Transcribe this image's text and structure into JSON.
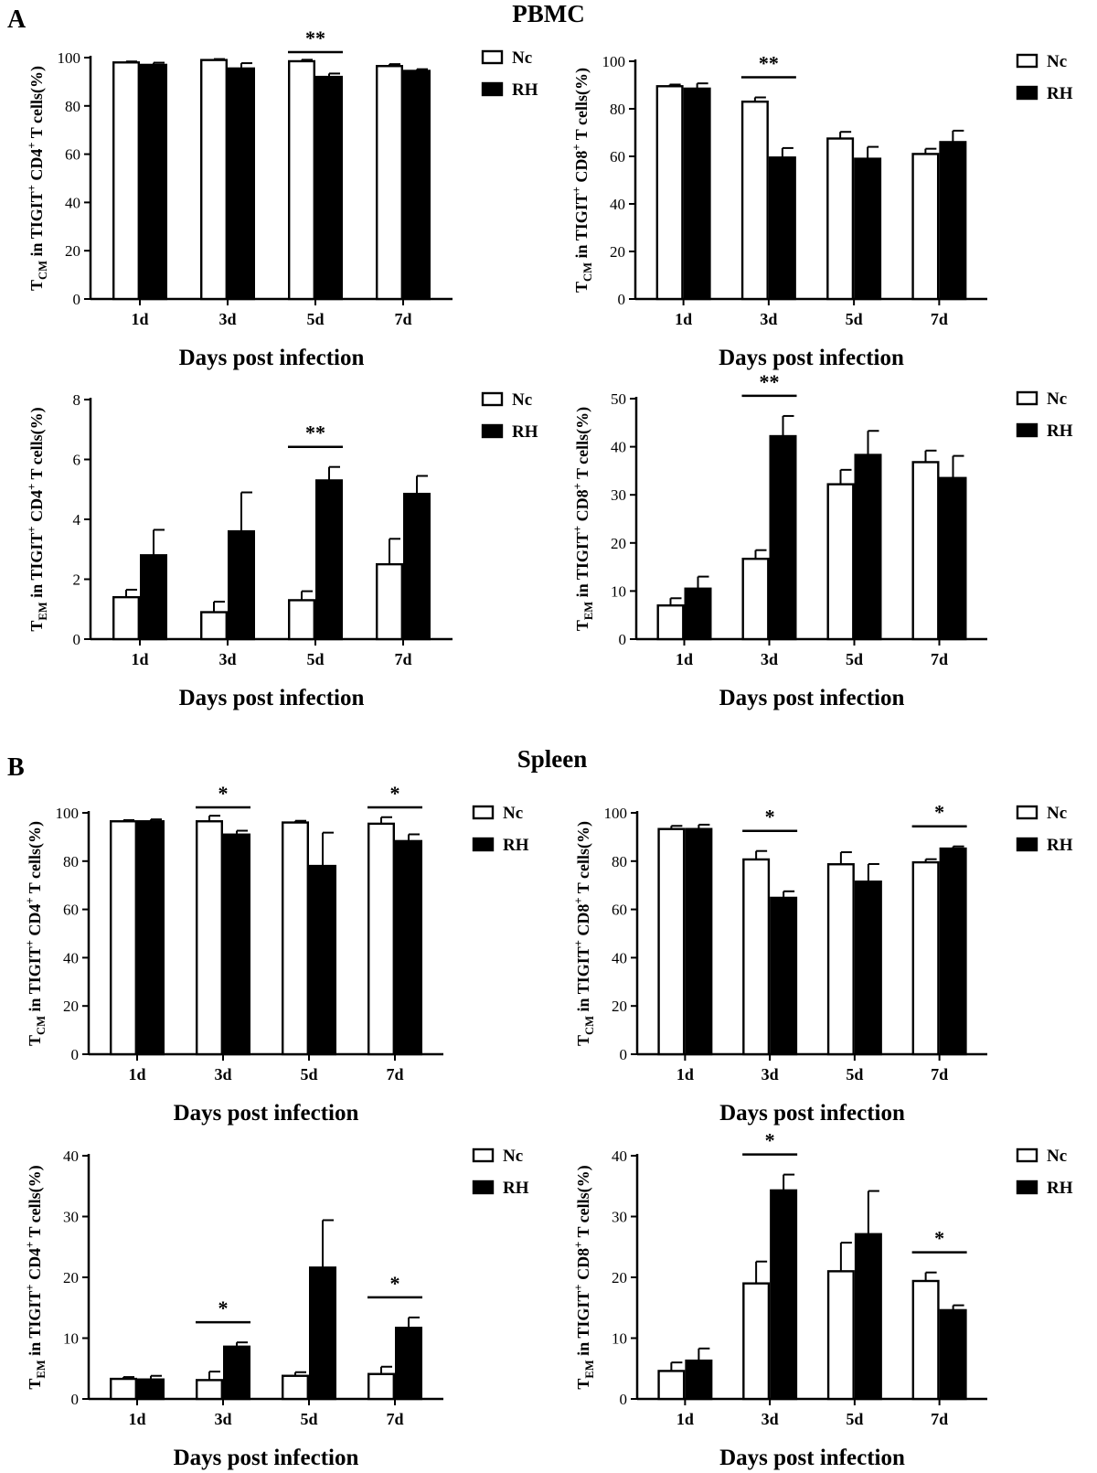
{
  "figure": {
    "panel_a_letter": "A",
    "panel_b_letter": "B",
    "panel_a_title": "PBMC",
    "panel_b_title": "Spleen"
  },
  "legend": {
    "nc_label": "Nc",
    "rh_label": "RH",
    "nc_fill": "#ffffff",
    "rh_fill": "#000000"
  },
  "chart_data": [
    {
      "type": "bar",
      "panel": "A",
      "title": "",
      "categories": [
        "1d",
        "3d",
        "5d",
        "7d"
      ],
      "xlabel": "Days post infection",
      "ylabel": {
        "main": "T",
        "sub": "CM",
        "mid": " in TIGIT",
        "sup": "+",
        "cell": " CD4",
        "sup2": "+",
        "tail": " T cells(%)"
      },
      "ylim": [
        0,
        100
      ],
      "yticks": [
        0,
        20,
        40,
        60,
        80,
        100
      ],
      "series": [
        {
          "name": "Nc",
          "values": [
            98,
            99,
            98.5,
            96.5
          ],
          "errors": [
            0.4,
            0.4,
            0.6,
            0.8
          ]
        },
        {
          "name": "RH",
          "values": [
            97,
            95.5,
            92,
            94.5
          ],
          "errors": [
            0.9,
            2.2,
            1.4,
            0.7
          ]
        }
      ],
      "significance": [
        {
          "category": "5d",
          "label": "**"
        }
      ]
    },
    {
      "type": "bar",
      "panel": "A",
      "title": "",
      "categories": [
        "1d",
        "3d",
        "5d",
        "7d"
      ],
      "xlabel": "Days post infection",
      "ylabel": {
        "main": "T",
        "sub": "CM",
        "mid": " in TIGIT",
        "sup": "+",
        "cell": " CD8",
        "sup2": "+",
        "tail": " T cells(%)"
      },
      "ylim": [
        0,
        100
      ],
      "yticks": [
        0,
        20,
        40,
        60,
        80,
        100
      ],
      "series": [
        {
          "name": "Nc",
          "values": [
            89.5,
            83,
            67.5,
            61
          ],
          "errors": [
            0.7,
            1.8,
            2.8,
            2.2
          ]
        },
        {
          "name": "RH",
          "values": [
            88.5,
            59.5,
            59,
            66
          ],
          "errors": [
            2.2,
            4,
            5,
            4.8
          ]
        }
      ],
      "significance": [
        {
          "category": "3d",
          "label": "**"
        }
      ]
    },
    {
      "type": "bar",
      "panel": "A",
      "title": "",
      "categories": [
        "1d",
        "3d",
        "5d",
        "7d"
      ],
      "xlabel": "Days post infection",
      "ylabel": {
        "main": "T",
        "sub": "EM",
        "mid": " in TIGIT",
        "sup": "+",
        "cell": " CD4",
        "sup2": "+",
        "tail": " T cells(%)"
      },
      "ylim": [
        0,
        8
      ],
      "yticks": [
        0,
        2,
        4,
        6,
        8
      ],
      "series": [
        {
          "name": "Nc",
          "values": [
            1.4,
            0.9,
            1.3,
            2.5
          ],
          "errors": [
            0.25,
            0.35,
            0.3,
            0.85
          ]
        },
        {
          "name": "RH",
          "values": [
            2.8,
            3.6,
            5.3,
            4.85
          ],
          "errors": [
            0.85,
            1.3,
            0.45,
            0.6
          ]
        }
      ],
      "significance": [
        {
          "category": "5d",
          "label": "**"
        }
      ]
    },
    {
      "type": "bar",
      "panel": "A",
      "title": "",
      "categories": [
        "1d",
        "3d",
        "5d",
        "7d"
      ],
      "xlabel": "Days post infection",
      "ylabel": {
        "main": "T",
        "sub": "EM",
        "mid": " in TIGIT",
        "sup": "+",
        "cell": " CD8",
        "sup2": "+",
        "tail": " T cells(%)"
      },
      "ylim": [
        0,
        50
      ],
      "yticks": [
        0,
        10,
        20,
        30,
        40,
        50
      ],
      "series": [
        {
          "name": "Nc",
          "values": [
            7,
            16.7,
            32.2,
            36.8
          ],
          "errors": [
            1.5,
            1.8,
            3,
            2.4
          ]
        },
        {
          "name": "RH",
          "values": [
            10.5,
            42.2,
            38.3,
            33.5
          ],
          "errors": [
            2.5,
            4.2,
            5,
            4.6
          ]
        }
      ],
      "significance": [
        {
          "category": "3d",
          "label": "**"
        }
      ]
    },
    {
      "type": "bar",
      "panel": "B",
      "title": "",
      "categories": [
        "1d",
        "3d",
        "5d",
        "7d"
      ],
      "xlabel": "Days post infection",
      "ylabel": {
        "main": "T",
        "sub": "CM",
        "mid": " in TIGIT",
        "sup": "+",
        "cell": " CD4",
        "sup2": "+",
        "tail": " T cells(%)"
      },
      "ylim": [
        0,
        100
      ],
      "yticks": [
        0,
        20,
        40,
        60,
        80,
        100
      ],
      "series": [
        {
          "name": "Nc",
          "values": [
            96.5,
            96.5,
            96,
            95.5
          ],
          "errors": [
            0.5,
            2.3,
            0.7,
            2.7
          ]
        },
        {
          "name": "RH",
          "values": [
            96.5,
            91,
            78,
            88.3
          ],
          "errors": [
            0.8,
            1.6,
            13.8,
            2.8
          ]
        }
      ],
      "significance": [
        {
          "category": "3d",
          "label": "*"
        },
        {
          "category": "7d",
          "label": "*"
        }
      ]
    },
    {
      "type": "bar",
      "panel": "B",
      "title": "",
      "categories": [
        "1d",
        "3d",
        "5d",
        "7d"
      ],
      "xlabel": "Days post infection",
      "ylabel": {
        "main": "T",
        "sub": "CM",
        "mid": " in TIGIT",
        "sup": "+",
        "cell": " CD8",
        "sup2": "+",
        "tail": " T cells(%)"
      },
      "ylim": [
        0,
        100
      ],
      "yticks": [
        0,
        20,
        40,
        60,
        80,
        100
      ],
      "series": [
        {
          "name": "Nc",
          "values": [
            93.3,
            80.7,
            78.7,
            79.5
          ],
          "errors": [
            1.3,
            3.5,
            5,
            1.3
          ]
        },
        {
          "name": "RH",
          "values": [
            93.3,
            64.8,
            71.5,
            85.2
          ],
          "errors": [
            1.8,
            2.7,
            7.3,
            0.9
          ]
        }
      ],
      "significance": [
        {
          "category": "3d",
          "label": "*"
        },
        {
          "category": "7d",
          "label": "*"
        }
      ]
    },
    {
      "type": "bar",
      "panel": "B",
      "title": "",
      "categories": [
        "1d",
        "3d",
        "5d",
        "7d"
      ],
      "xlabel": "Days post infection",
      "ylabel": {
        "main": "T",
        "sub": "EM",
        "mid": " in TIGIT",
        "sup": "+",
        "cell": " CD4",
        "sup2": "+",
        "tail": " T cells(%)"
      },
      "ylim": [
        0,
        40
      ],
      "yticks": [
        0,
        10,
        20,
        30,
        40
      ],
      "series": [
        {
          "name": "Nc",
          "values": [
            3.3,
            3.1,
            3.8,
            4.1
          ],
          "errors": [
            0.3,
            1.4,
            0.6,
            1.2
          ]
        },
        {
          "name": "RH",
          "values": [
            3.2,
            8.6,
            21.6,
            11.7
          ],
          "errors": [
            0.6,
            0.7,
            7.8,
            1.7
          ]
        }
      ],
      "significance": [
        {
          "category": "3d",
          "label": "*"
        },
        {
          "category": "7d",
          "label": "*"
        }
      ]
    },
    {
      "type": "bar",
      "panel": "B",
      "title": "",
      "categories": [
        "1d",
        "3d",
        "5d",
        "7d"
      ],
      "xlabel": "Days post infection",
      "ylabel": {
        "main": "T",
        "sub": "EM",
        "mid": " in TIGIT",
        "sup": "+",
        "cell": " CD8",
        "sup2": "+",
        "tail": " T cells(%)"
      },
      "ylim": [
        0,
        40
      ],
      "yticks": [
        0,
        10,
        20,
        30,
        40
      ],
      "series": [
        {
          "name": "Nc",
          "values": [
            4.6,
            19,
            21,
            19.4
          ],
          "errors": [
            1.4,
            3.6,
            4.7,
            1.4
          ]
        },
        {
          "name": "RH",
          "values": [
            6.3,
            34.3,
            27.1,
            14.6
          ],
          "errors": [
            2,
            2.6,
            7.1,
            0.8
          ]
        }
      ],
      "significance": [
        {
          "category": "3d",
          "label": "*"
        },
        {
          "category": "7d",
          "label": "*"
        }
      ]
    }
  ]
}
